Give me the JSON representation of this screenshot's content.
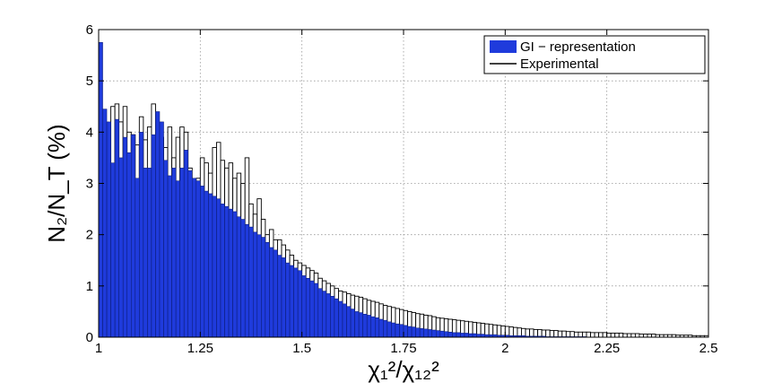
{
  "chart_data": {
    "type": "bar",
    "title": "",
    "xlabel": "χ₁²/χ₁₂²",
    "ylabel": "N₂/N_T (%)",
    "xlim": [
      1,
      2.5
    ],
    "ylim": [
      0,
      6
    ],
    "x_ticks": [
      "1",
      "1.25",
      "1.5",
      "1.75",
      "2",
      "2.25",
      "2.5"
    ],
    "y_ticks": [
      "0",
      "1",
      "2",
      "3",
      "4",
      "5",
      "6"
    ],
    "grid": true,
    "legend_position": "top-right",
    "bin_width": 0.01,
    "bin_start": 1.0,
    "series": [
      {
        "name": "GI − representation",
        "color": "#1f3bdc",
        "style": "filled",
        "values": [
          5.75,
          4.45,
          4.2,
          3.4,
          4.25,
          3.5,
          3.9,
          3.6,
          3.95,
          3.1,
          4.0,
          3.3,
          3.3,
          3.95,
          4.4,
          4.2,
          3.45,
          3.15,
          3.3,
          3.05,
          3.3,
          3.65,
          3.25,
          3.1,
          3.05,
          2.95,
          2.85,
          2.8,
          2.75,
          2.7,
          2.6,
          2.55,
          2.5,
          2.45,
          2.35,
          2.3,
          2.2,
          2.15,
          2.05,
          2.0,
          1.95,
          1.85,
          1.75,
          1.7,
          1.6,
          1.55,
          1.45,
          1.4,
          1.35,
          1.3,
          1.2,
          1.15,
          1.1,
          1.05,
          0.95,
          0.9,
          0.85,
          0.8,
          0.75,
          0.7,
          0.65,
          0.6,
          0.55,
          0.5,
          0.48,
          0.45,
          0.43,
          0.4,
          0.38,
          0.35,
          0.33,
          0.3,
          0.28,
          0.26,
          0.25,
          0.23,
          0.21,
          0.2,
          0.18,
          0.17,
          0.16,
          0.15,
          0.14,
          0.13,
          0.12,
          0.11,
          0.1,
          0.09,
          0.09,
          0.08,
          0.08,
          0.07,
          0.07,
          0.06,
          0.06,
          0.05,
          0.05,
          0.05,
          0.04,
          0.04,
          0.04,
          0.03,
          0.03,
          0.03,
          0.03,
          0.02,
          0.02,
          0.02,
          0.02,
          0.02,
          0.01,
          0.01,
          0.01,
          0.01,
          0.01,
          0.01,
          0.01,
          0.01,
          0.01,
          0.01,
          0.0,
          0.0,
          0.0,
          0.0,
          0.0,
          0.0,
          0.0,
          0.0,
          0.0,
          0.0,
          0.0,
          0.0,
          0.0,
          0.0,
          0.0,
          0.0,
          0.0,
          0.0,
          0.0,
          0.0,
          0.0,
          0.0,
          0.0,
          0.0,
          0.0,
          0.0,
          0.0,
          0.0,
          0.0,
          0.0
        ]
      },
      {
        "name": "Experimental",
        "color": "#000000",
        "style": "outline",
        "values": [
          4.1,
          4.15,
          4.0,
          4.5,
          4.55,
          4.2,
          4.5,
          4.0,
          3.95,
          3.75,
          4.3,
          3.85,
          4.1,
          4.55,
          4.0,
          3.9,
          3.7,
          4.1,
          3.5,
          3.9,
          4.1,
          4.0,
          3.3,
          3.0,
          3.1,
          3.5,
          3.4,
          3.2,
          3.7,
          3.8,
          3.45,
          3.3,
          3.4,
          3.1,
          3.2,
          3.0,
          3.5,
          2.6,
          2.4,
          2.7,
          2.3,
          2.0,
          2.1,
          1.9,
          1.9,
          1.8,
          1.7,
          1.6,
          1.5,
          1.45,
          1.4,
          1.35,
          1.3,
          1.25,
          1.15,
          1.1,
          1.05,
          1.0,
          0.95,
          0.9,
          0.88,
          0.85,
          0.82,
          0.8,
          0.78,
          0.75,
          0.72,
          0.7,
          0.68,
          0.65,
          0.62,
          0.6,
          0.58,
          0.56,
          0.54,
          0.52,
          0.5,
          0.48,
          0.46,
          0.45,
          0.43,
          0.42,
          0.4,
          0.38,
          0.37,
          0.36,
          0.35,
          0.34,
          0.33,
          0.32,
          0.31,
          0.3,
          0.29,
          0.28,
          0.27,
          0.26,
          0.25,
          0.24,
          0.23,
          0.22,
          0.21,
          0.2,
          0.19,
          0.18,
          0.17,
          0.16,
          0.16,
          0.15,
          0.15,
          0.14,
          0.14,
          0.13,
          0.13,
          0.12,
          0.12,
          0.11,
          0.11,
          0.1,
          0.1,
          0.1,
          0.1,
          0.09,
          0.09,
          0.09,
          0.09,
          0.08,
          0.08,
          0.08,
          0.08,
          0.07,
          0.07,
          0.07,
          0.07,
          0.06,
          0.06,
          0.06,
          0.06,
          0.05,
          0.05,
          0.05,
          0.05,
          0.05,
          0.04,
          0.04,
          0.04,
          0.04,
          0.03,
          0.03,
          0.03,
          0.03
        ]
      }
    ]
  }
}
